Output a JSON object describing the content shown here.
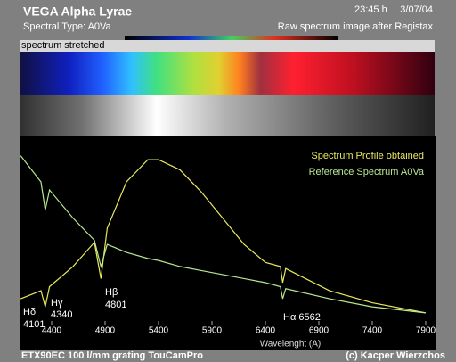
{
  "chart_data": {
    "type": "line",
    "title": "VEGA Alpha Lyrae",
    "subtitle": "Spectral Type: A0Va",
    "time": "23:45 h",
    "date": "3/07/04",
    "caption": "Raw spectrum image after Registax",
    "strip_label": "spectrum stretched",
    "xlabel": "Wavelenght (A)",
    "x": [
      4110,
      4300,
      4340,
      4380,
      4600,
      4800,
      4861,
      4920,
      5100,
      5300,
      5400,
      5600,
      5800,
      6000,
      6200,
      6400,
      6540,
      6562,
      6590,
      7000,
      7400,
      7900
    ],
    "series": [
      {
        "name": "Spectrum Profile obtained",
        "color": "#e8e860",
        "values": [
          19,
          23,
          15,
          25,
          35,
          47,
          29,
          54,
          77,
          88,
          88,
          83,
          72,
          59,
          46,
          37,
          35,
          27,
          34,
          23,
          17,
          12
        ]
      },
      {
        "name": "Reference Spectrum A0Va",
        "color": "#b8e890",
        "values": [
          90,
          77,
          63,
          73,
          59,
          48,
          35,
          46,
          42,
          39,
          38,
          35,
          33,
          31,
          29,
          27,
          25,
          19,
          24,
          19,
          15,
          12
        ]
      }
    ],
    "xlim": [
      4100,
      8000
    ],
    "ylim": [
      0,
      100
    ],
    "xticks": [
      4400,
      4900,
      5400,
      5900,
      6400,
      6900,
      7400,
      7900
    ],
    "grid": false,
    "annotations": [
      {
        "text": "Hδ"
      },
      {
        "text": "4101"
      },
      {
        "text": "Hγ"
      },
      {
        "text": "4340"
      },
      {
        "text": "Hβ"
      },
      {
        "text": "4801"
      },
      {
        "text": "Hα 6562"
      }
    ],
    "footer": [
      "ETX90EC   100 l/mm grating   TouCamPro",
      "(c) Kacper Wierzchos"
    ]
  }
}
